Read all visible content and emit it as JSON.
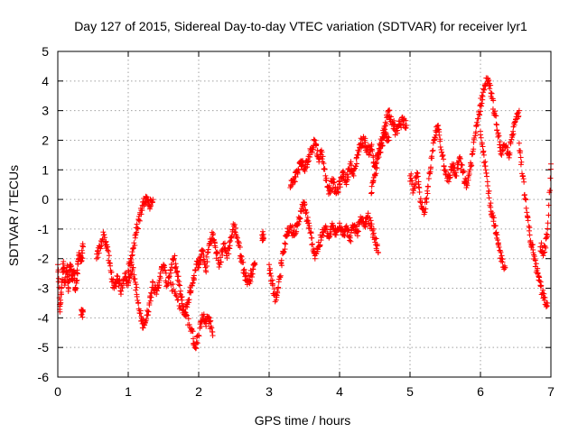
{
  "chart_data": {
    "type": "scatter",
    "title": "Day 127 of 2015, Sidereal Day-to-day VTEC variation (SDTVAR) for receiver lyr1",
    "xlabel": "GPS time / hours",
    "ylabel": "SDTVAR / TECUs",
    "xlim": [
      0,
      7
    ],
    "ylim": [
      -6,
      5
    ],
    "xticks": [
      0,
      1,
      2,
      3,
      4,
      5,
      6,
      7
    ],
    "yticks": [
      -6,
      -5,
      -4,
      -3,
      -2,
      -1,
      0,
      1,
      2,
      3,
      4,
      5
    ],
    "grid": true,
    "marker": "+",
    "series": [
      {
        "name": "SDTVAR",
        "color": "#ff0000",
        "tracks": [
          [
            [
              0.0,
              -2.2
            ],
            [
              0.03,
              -3.8
            ],
            [
              0.05,
              -3.0
            ],
            [
              0.08,
              -2.1
            ],
            [
              0.1,
              -2.8
            ],
            [
              0.13,
              -2.3
            ],
            [
              0.15,
              -3.1
            ],
            [
              0.18,
              -2.2
            ],
            [
              0.2,
              -2.7
            ],
            [
              0.23,
              -2.4
            ],
            [
              0.25,
              -3.0
            ],
            [
              0.28,
              -2.5
            ],
            [
              0.3,
              -1.8
            ],
            [
              0.33,
              -2.1
            ],
            [
              0.36,
              -1.6
            ]
          ],
          [
            [
              0.33,
              -3.9
            ],
            [
              0.36,
              -3.8
            ]
          ],
          [
            [
              0.55,
              -2.0
            ],
            [
              0.6,
              -1.6
            ],
            [
              0.65,
              -1.2
            ],
            [
              0.7,
              -1.6
            ],
            [
              0.75,
              -2.4
            ],
            [
              0.8,
              -3.0
            ],
            [
              0.85,
              -2.6
            ],
            [
              0.9,
              -3.1
            ],
            [
              0.95,
              -2.5
            ],
            [
              1.0,
              -2.9
            ],
            [
              1.05,
              -2.2
            ],
            [
              1.1,
              -2.8
            ],
            [
              1.15,
              -3.7
            ],
            [
              1.2,
              -4.2
            ],
            [
              1.25,
              -4.1
            ],
            [
              1.3,
              -3.5
            ],
            [
              1.35,
              -2.8
            ],
            [
              1.4,
              -3.2
            ],
            [
              1.45,
              -2.6
            ],
            [
              1.5,
              -2.2
            ],
            [
              1.55,
              -2.9
            ],
            [
              1.6,
              -2.4
            ],
            [
              1.65,
              -2.0
            ],
            [
              1.7,
              -2.6
            ],
            [
              1.75,
              -3.3
            ],
            [
              1.8,
              -3.9
            ],
            [
              1.85,
              -3.4
            ],
            [
              1.9,
              -2.9
            ],
            [
              1.95,
              -2.4
            ],
            [
              2.0,
              -2.0
            ]
          ],
          [
            [
              1.0,
              -2.4
            ],
            [
              1.05,
              -1.9
            ],
            [
              1.1,
              -1.3
            ],
            [
              1.15,
              -0.7
            ],
            [
              1.2,
              -0.2
            ],
            [
              1.25,
              0.1
            ],
            [
              1.3,
              -0.2
            ],
            [
              1.35,
              0.0
            ]
          ],
          [
            [
              1.6,
              -2.8
            ],
            [
              1.7,
              -3.4
            ],
            [
              1.8,
              -3.8
            ],
            [
              1.9,
              -4.4
            ],
            [
              1.95,
              -5.0
            ],
            [
              2.0,
              -4.6
            ],
            [
              2.05,
              -3.9
            ],
            [
              2.1,
              -4.2
            ],
            [
              2.15,
              -4.0
            ],
            [
              2.2,
              -4.6
            ]
          ],
          [
            [
              2.0,
              -2.3
            ],
            [
              2.05,
              -1.7
            ],
            [
              2.1,
              -2.4
            ],
            [
              2.15,
              -1.5
            ],
            [
              2.2,
              -1.2
            ],
            [
              2.25,
              -1.8
            ],
            [
              2.3,
              -2.2
            ],
            [
              2.35,
              -1.5
            ],
            [
              2.4,
              -1.9
            ],
            [
              2.45,
              -1.4
            ],
            [
              2.5,
              -0.9
            ],
            [
              2.55,
              -1.3
            ],
            [
              2.6,
              -1.9
            ],
            [
              2.65,
              -2.5
            ],
            [
              2.7,
              -2.8
            ],
            [
              2.75,
              -2.5
            ],
            [
              2.8,
              -2.2
            ]
          ],
          [
            [
              2.9,
              -1.2
            ],
            [
              2.92,
              -1.3
            ]
          ],
          [
            [
              3.0,
              -2.2
            ],
            [
              3.05,
              -2.9
            ],
            [
              3.1,
              -3.4
            ],
            [
              3.15,
              -2.6
            ],
            [
              3.2,
              -1.8
            ],
            [
              3.25,
              -1.2
            ],
            [
              3.3,
              -0.9
            ],
            [
              3.35,
              -1.2
            ],
            [
              3.4,
              -0.8
            ],
            [
              3.45,
              -0.4
            ],
            [
              3.5,
              -0.1
            ]
          ],
          [
            [
              3.3,
              0.4
            ],
            [
              3.35,
              0.7
            ],
            [
              3.4,
              0.9
            ],
            [
              3.45,
              1.3
            ],
            [
              3.5,
              1.0
            ],
            [
              3.55,
              1.3
            ],
            [
              3.6,
              1.7
            ],
            [
              3.65,
              2.0
            ],
            [
              3.7,
              1.4
            ],
            [
              3.75,
              1.6
            ],
            [
              3.8,
              0.8
            ],
            [
              3.85,
              0.3
            ],
            [
              3.9,
              0.6
            ],
            [
              3.95,
              0.2
            ],
            [
              4.0,
              0.5
            ],
            [
              4.05,
              0.9
            ],
            [
              4.1,
              0.6
            ],
            [
              4.15,
              1.2
            ],
            [
              4.2,
              0.8
            ],
            [
              4.25,
              1.5
            ],
            [
              4.3,
              1.9
            ],
            [
              4.35,
              2.0
            ],
            [
              4.4,
              1.6
            ],
            [
              4.45,
              1.8
            ],
            [
              4.5,
              1.1
            ],
            [
              4.55,
              1.5
            ],
            [
              4.6,
              1.8
            ],
            [
              4.65,
              2.2
            ],
            [
              4.7,
              2.0
            ]
          ],
          [
            [
              3.5,
              -0.2
            ],
            [
              3.55,
              -0.8
            ],
            [
              3.6,
              -1.3
            ],
            [
              3.65,
              -1.9
            ],
            [
              3.7,
              -1.6
            ],
            [
              3.75,
              -1.2
            ],
            [
              3.8,
              -1.0
            ],
            [
              3.85,
              -1.3
            ],
            [
              3.9,
              -0.9
            ],
            [
              3.95,
              -1.2
            ],
            [
              4.0,
              -0.8
            ],
            [
              4.05,
              -1.1
            ],
            [
              4.1,
              -1.0
            ],
            [
              4.15,
              -1.3
            ],
            [
              4.2,
              -0.9
            ],
            [
              4.25,
              -1.1
            ],
            [
              4.3,
              -0.7
            ],
            [
              4.35,
              -0.9
            ],
            [
              4.4,
              -0.6
            ],
            [
              4.45,
              -0.9
            ],
            [
              4.5,
              -1.3
            ],
            [
              4.55,
              -1.8
            ]
          ],
          [
            [
              4.45,
              0.2
            ],
            [
              4.5,
              0.8
            ],
            [
              4.55,
              1.5
            ],
            [
              4.6,
              2.0
            ],
            [
              4.65,
              2.6
            ],
            [
              4.7,
              3.0
            ],
            [
              4.75,
              2.6
            ],
            [
              4.8,
              2.3
            ],
            [
              4.85,
              2.5
            ],
            [
              4.9,
              2.7
            ],
            [
              4.95,
              2.5
            ]
          ],
          [
            [
              5.0,
              0.8
            ],
            [
              5.05,
              0.3
            ],
            [
              5.1,
              0.9
            ],
            [
              5.15,
              -0.1
            ],
            [
              5.2,
              -0.5
            ],
            [
              5.25,
              0.2
            ],
            [
              5.3,
              1.4
            ],
            [
              5.35,
              2.1
            ],
            [
              5.4,
              2.5
            ],
            [
              5.45,
              1.6
            ],
            [
              5.5,
              1.0
            ],
            [
              5.55,
              0.6
            ],
            [
              5.6,
              1.2
            ],
            [
              5.65,
              0.8
            ],
            [
              5.7,
              1.4
            ],
            [
              5.75,
              0.9
            ],
            [
              5.8,
              0.4
            ],
            [
              5.85,
              1.0
            ],
            [
              5.9,
              1.7
            ],
            [
              5.95,
              2.6
            ],
            [
              6.0,
              3.2
            ],
            [
              6.05,
              3.7
            ],
            [
              6.1,
              4.1
            ],
            [
              6.15,
              3.6
            ],
            [
              6.2,
              2.9
            ],
            [
              6.25,
              2.2
            ],
            [
              6.3,
              1.5
            ],
            [
              6.35,
              1.8
            ],
            [
              6.4,
              1.5
            ],
            [
              6.45,
              2.1
            ],
            [
              6.5,
              2.7
            ],
            [
              6.55,
              3.0
            ]
          ],
          [
            [
              6.0,
              2.3
            ],
            [
              6.05,
              1.5
            ],
            [
              6.1,
              0.6
            ],
            [
              6.15,
              -0.4
            ],
            [
              6.2,
              -0.9
            ],
            [
              6.25,
              -1.5
            ],
            [
              6.3,
              -2.0
            ],
            [
              6.35,
              -2.3
            ]
          ],
          [
            [
              6.55,
              1.9
            ],
            [
              6.6,
              0.8
            ],
            [
              6.65,
              -0.3
            ],
            [
              6.7,
              -1.2
            ],
            [
              6.75,
              -1.8
            ],
            [
              6.8,
              -2.4
            ],
            [
              6.85,
              -2.9
            ],
            [
              6.9,
              -3.3
            ],
            [
              6.95,
              -3.5
            ]
          ],
          [
            [
              6.85,
              -1.6
            ],
            [
              6.9,
              -1.8
            ],
            [
              6.95,
              -1.2
            ],
            [
              7.0,
              1.2
            ]
          ]
        ]
      }
    ]
  }
}
